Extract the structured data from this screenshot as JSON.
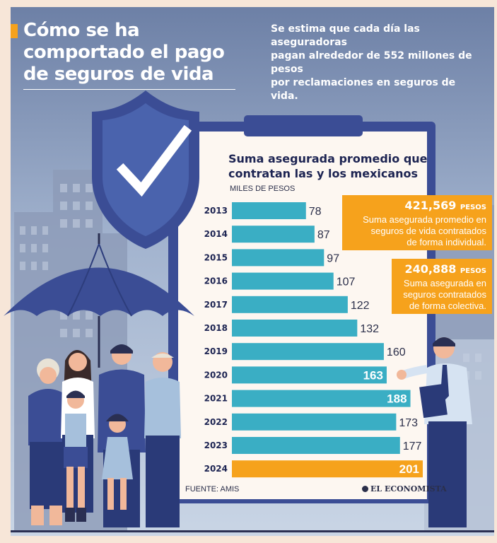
{
  "header": {
    "title_lines": [
      "Cómo se ha",
      "comportado el pago",
      "de seguros de vida"
    ],
    "subtitle_lines": [
      "Se estima que cada día las aseguradoras",
      "pagan alrededor de 552 millones de pesos",
      "por reclamaciones en seguros de vida."
    ]
  },
  "callouts": {
    "individual": {
      "value": "421,569",
      "unit": "PESOS",
      "text_lines": [
        "Suma asegurada promedio en",
        "seguros de vida contratados",
        "de forma individual."
      ]
    },
    "collective": {
      "value": "240,888",
      "unit": "PESOS",
      "text_lines": [
        "Suma asegurada en",
        "seguros contratados",
        "de forma colectiva."
      ]
    }
  },
  "footer": {
    "source": "FUENTE: AMIS",
    "brand": "EL ECONOMISTA"
  },
  "chart_data": {
    "type": "bar",
    "orientation": "horizontal",
    "title_lines": [
      "Suma asegurada promedio que",
      "contratan las y los mexicanos"
    ],
    "units_label": "MILES DE PESOS",
    "categories": [
      "2013",
      "2014",
      "2015",
      "2016",
      "2017",
      "2018",
      "2019",
      "2020",
      "2021",
      "2022",
      "2023",
      "2024"
    ],
    "values": [
      78,
      87,
      97,
      107,
      122,
      132,
      160,
      163,
      188,
      173,
      177,
      201
    ],
    "value_labels_inside": [
      false,
      false,
      false,
      false,
      false,
      false,
      false,
      true,
      true,
      false,
      false,
      true
    ],
    "highlight_category": "2024",
    "bar_color": "#3aaec4",
    "highlight_color": "#f6a21c",
    "xlim": [
      0,
      201
    ],
    "grid": false,
    "legend": "none"
  }
}
